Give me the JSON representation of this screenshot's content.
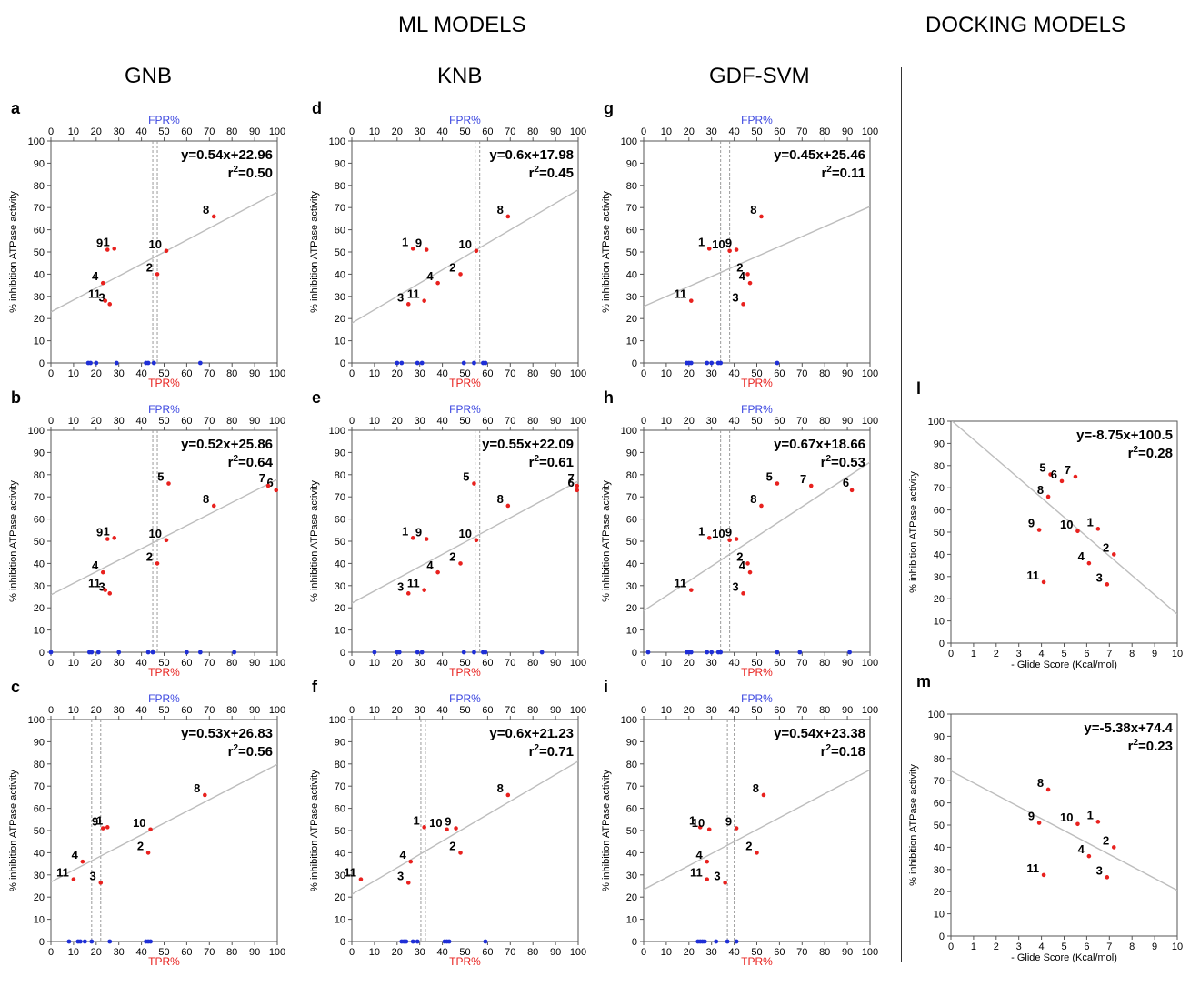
{
  "headers": {
    "ml": "ML MODELS",
    "docking": "DOCKING MODELS"
  },
  "columns": [
    "GNB",
    "KNB",
    "GDF-SVM"
  ],
  "axis_labels": {
    "fpr": "FPR%",
    "tpr": "TPR%",
    "activity": "% inhibition ATPase activity",
    "glide": "- Glide Score (Kcal/mol)"
  },
  "colors": {
    "compound": "#e8211e",
    "decoy": "#1f2fd6",
    "fit": "#bdbdbd",
    "fpr_text": "#3b46e0",
    "tpr_text": "#e8211e"
  },
  "chart_data": [
    {
      "id": "a",
      "type": "scatter",
      "model": "GNB",
      "xlim": [
        0,
        100
      ],
      "ylim": [
        0,
        100
      ],
      "equation": "y=0.54x+22.96",
      "r2": "0.50",
      "fit": {
        "slope": 0.54,
        "intercept": 22.96
      },
      "threshold": [
        45,
        47
      ],
      "points": [
        {
          "label": "1",
          "x": 28,
          "y": 51.5
        },
        {
          "label": "2",
          "x": 47,
          "y": 40
        },
        {
          "label": "3",
          "x": 26,
          "y": 26.5
        },
        {
          "label": "4",
          "x": 23,
          "y": 36
        },
        {
          "label": "8",
          "x": 72,
          "y": 66
        },
        {
          "label": "9",
          "x": 25,
          "y": 51
        },
        {
          "label": "10",
          "x": 51,
          "y": 50.5
        },
        {
          "label": "11",
          "x": 24,
          "y": 28
        }
      ],
      "decoys": [
        16.5,
        17.5,
        20,
        29,
        42,
        43,
        45.5,
        66
      ]
    },
    {
      "id": "d",
      "type": "scatter",
      "model": "KNB",
      "xlim": [
        0,
        100
      ],
      "ylim": [
        0,
        100
      ],
      "equation": "y=0.6x+17.98",
      "r2": "0.45",
      "fit": {
        "slope": 0.6,
        "intercept": 17.98
      },
      "threshold": [
        54.5,
        56.5
      ],
      "points": [
        {
          "label": "1",
          "x": 27,
          "y": 51.5
        },
        {
          "label": "2",
          "x": 48,
          "y": 40
        },
        {
          "label": "3",
          "x": 25,
          "y": 26.5
        },
        {
          "label": "4",
          "x": 38,
          "y": 36
        },
        {
          "label": "8",
          "x": 69,
          "y": 66
        },
        {
          "label": "9",
          "x": 33,
          "y": 51
        },
        {
          "label": "10",
          "x": 55,
          "y": 50.5
        },
        {
          "label": "11",
          "x": 32,
          "y": 28
        }
      ],
      "decoys": [
        20,
        22,
        29,
        31,
        49.5,
        54,
        58,
        59
      ]
    },
    {
      "id": "g",
      "type": "scatter",
      "model": "GDF-SVM",
      "xlim": [
        0,
        100
      ],
      "ylim": [
        0,
        100
      ],
      "equation": "y=0.45x+25.46",
      "r2": "0.11",
      "fit": {
        "slope": 0.45,
        "intercept": 25.46
      },
      "threshold": [
        34,
        38
      ],
      "points": [
        {
          "label": "1",
          "x": 29,
          "y": 51.5
        },
        {
          "label": "2",
          "x": 46,
          "y": 40
        },
        {
          "label": "3",
          "x": 44,
          "y": 26.5
        },
        {
          "label": "4",
          "x": 47,
          "y": 36
        },
        {
          "label": "8",
          "x": 52,
          "y": 66
        },
        {
          "label": "9",
          "x": 41,
          "y": 51
        },
        {
          "label": "10",
          "x": 38,
          "y": 50.5
        },
        {
          "label": "11",
          "x": 21,
          "y": 28
        }
      ],
      "decoys": [
        19,
        20,
        21,
        28,
        30,
        33,
        34,
        59
      ]
    },
    {
      "id": "b",
      "type": "scatter",
      "model": "GNB",
      "xlim": [
        0,
        100
      ],
      "ylim": [
        0,
        100
      ],
      "equation": "y=0.52x+25.86",
      "r2": "0.64",
      "fit": {
        "slope": 0.52,
        "intercept": 25.86
      },
      "threshold": [
        45,
        47
      ],
      "points": [
        {
          "label": "1",
          "x": 28,
          "y": 51.5
        },
        {
          "label": "2",
          "x": 47,
          "y": 40
        },
        {
          "label": "3",
          "x": 26,
          "y": 26.5
        },
        {
          "label": "4",
          "x": 23,
          "y": 36
        },
        {
          "label": "5",
          "x": 52,
          "y": 76
        },
        {
          "label": "6",
          "x": 99.5,
          "y": 73
        },
        {
          "label": "7",
          "x": 96,
          "y": 75
        },
        {
          "label": "8",
          "x": 72,
          "y": 66
        },
        {
          "label": "9",
          "x": 25,
          "y": 51
        },
        {
          "label": "10",
          "x": 51,
          "y": 50.5
        },
        {
          "label": "11",
          "x": 24,
          "y": 28
        }
      ],
      "decoys": [
        0,
        17,
        18,
        21,
        30,
        43,
        45,
        60,
        66,
        81
      ]
    },
    {
      "id": "e",
      "type": "scatter",
      "model": "KNB",
      "xlim": [
        0,
        100
      ],
      "ylim": [
        0,
        100
      ],
      "equation": "y=0.55x+22.09",
      "r2": "0.61",
      "fit": {
        "slope": 0.55,
        "intercept": 22.09
      },
      "threshold": [
        54.5,
        56.5
      ],
      "points": [
        {
          "label": "1",
          "x": 27,
          "y": 51.5
        },
        {
          "label": "2",
          "x": 48,
          "y": 40
        },
        {
          "label": "3",
          "x": 25,
          "y": 26.5
        },
        {
          "label": "4",
          "x": 38,
          "y": 36
        },
        {
          "label": "5",
          "x": 54,
          "y": 76
        },
        {
          "label": "6",
          "x": 99.5,
          "y": 73
        },
        {
          "label": "7",
          "x": 99.5,
          "y": 75
        },
        {
          "label": "8",
          "x": 69,
          "y": 66
        },
        {
          "label": "9",
          "x": 33,
          "y": 51
        },
        {
          "label": "10",
          "x": 55,
          "y": 50.5
        },
        {
          "label": "11",
          "x": 32,
          "y": 28
        }
      ],
      "decoys": [
        10,
        20,
        21,
        29,
        31,
        49.5,
        54,
        58,
        59,
        84
      ]
    },
    {
      "id": "h",
      "type": "scatter",
      "model": "GDF-SVM",
      "xlim": [
        0,
        100
      ],
      "ylim": [
        0,
        100
      ],
      "equation": "y=0.67x+18.66",
      "r2": "0.53",
      "fit": {
        "slope": 0.67,
        "intercept": 18.66
      },
      "threshold": [
        34,
        38
      ],
      "points": [
        {
          "label": "1",
          "x": 29,
          "y": 51.5
        },
        {
          "label": "2",
          "x": 46,
          "y": 40
        },
        {
          "label": "3",
          "x": 44,
          "y": 26.5
        },
        {
          "label": "4",
          "x": 47,
          "y": 36
        },
        {
          "label": "5",
          "x": 59,
          "y": 76
        },
        {
          "label": "6",
          "x": 92,
          "y": 73
        },
        {
          "label": "7",
          "x": 74,
          "y": 75
        },
        {
          "label": "8",
          "x": 52,
          "y": 66
        },
        {
          "label": "9",
          "x": 41,
          "y": 51
        },
        {
          "label": "10",
          "x": 38,
          "y": 50.5
        },
        {
          "label": "11",
          "x": 21,
          "y": 28
        }
      ],
      "decoys": [
        2,
        19,
        20,
        21,
        28,
        30,
        33,
        34,
        59,
        69,
        91
      ]
    },
    {
      "id": "c",
      "type": "scatter",
      "model": "GNB",
      "xlim": [
        0,
        100
      ],
      "ylim": [
        0,
        100
      ],
      "equation": "y=0.53x+26.83",
      "r2": "0.56",
      "fit": {
        "slope": 0.53,
        "intercept": 26.83
      },
      "threshold": [
        18,
        22
      ],
      "points": [
        {
          "label": "1",
          "x": 25,
          "y": 51.5
        },
        {
          "label": "2",
          "x": 43,
          "y": 40
        },
        {
          "label": "3",
          "x": 22,
          "y": 26.5
        },
        {
          "label": "4",
          "x": 14,
          "y": 36
        },
        {
          "label": "8",
          "x": 68,
          "y": 66
        },
        {
          "label": "9",
          "x": 23,
          "y": 51
        },
        {
          "label": "10",
          "x": 44,
          "y": 50.5
        },
        {
          "label": "11",
          "x": 10,
          "y": 28
        }
      ],
      "decoys": [
        8,
        12,
        13,
        15,
        18,
        26,
        42,
        43,
        44
      ]
    },
    {
      "id": "f",
      "type": "scatter",
      "model": "KNB",
      "xlim": [
        0,
        100
      ],
      "ylim": [
        0,
        100
      ],
      "equation": "y=0.6x+21.23",
      "r2": "0.71",
      "fit": {
        "slope": 0.6,
        "intercept": 21.23
      },
      "threshold": [
        30.5,
        32.5
      ],
      "points": [
        {
          "label": "1",
          "x": 32,
          "y": 51.5
        },
        {
          "label": "2",
          "x": 48,
          "y": 40
        },
        {
          "label": "3",
          "x": 25,
          "y": 26.5
        },
        {
          "label": "4",
          "x": 26,
          "y": 36
        },
        {
          "label": "8",
          "x": 69,
          "y": 66
        },
        {
          "label": "9",
          "x": 46,
          "y": 51
        },
        {
          "label": "10",
          "x": 42,
          "y": 50.5
        },
        {
          "label": "11",
          "x": 4,
          "y": 28
        }
      ],
      "decoys": [
        22,
        23,
        24,
        27,
        29,
        41,
        42,
        43,
        59
      ]
    },
    {
      "id": "i",
      "type": "scatter",
      "model": "GDF-SVM",
      "xlim": [
        0,
        100
      ],
      "ylim": [
        0,
        100
      ],
      "equation": "y=0.54x+23.38",
      "r2": "0.18",
      "fit": {
        "slope": 0.54,
        "intercept": 23.38
      },
      "threshold": [
        37,
        40
      ],
      "points": [
        {
          "label": "1",
          "x": 25,
          "y": 51.5
        },
        {
          "label": "2",
          "x": 50,
          "y": 40
        },
        {
          "label": "3",
          "x": 36,
          "y": 26.5
        },
        {
          "label": "4",
          "x": 28,
          "y": 36
        },
        {
          "label": "8",
          "x": 53,
          "y": 66
        },
        {
          "label": "9",
          "x": 41,
          "y": 51
        },
        {
          "label": "10",
          "x": 29,
          "y": 50.5
        },
        {
          "label": "11",
          "x": 28,
          "y": 28
        }
      ],
      "decoys": [
        24,
        25,
        26,
        27,
        32,
        37,
        41
      ]
    },
    {
      "id": "l",
      "type": "scatter",
      "model": "Docking",
      "xlim": [
        0,
        10
      ],
      "ylim": [
        0,
        100
      ],
      "equation": "y=-8.75x+100.5",
      "r2": "0.28",
      "fit": {
        "slope": -8.75,
        "intercept": 100.5
      },
      "points": [
        {
          "label": "1",
          "x": 6.5,
          "y": 51.5
        },
        {
          "label": "2",
          "x": 7.2,
          "y": 40
        },
        {
          "label": "3",
          "x": 6.9,
          "y": 26.5
        },
        {
          "label": "4",
          "x": 6.1,
          "y": 36
        },
        {
          "label": "5",
          "x": 4.4,
          "y": 76
        },
        {
          "label": "6",
          "x": 4.9,
          "y": 73
        },
        {
          "label": "7",
          "x": 5.5,
          "y": 75
        },
        {
          "label": "8",
          "x": 4.3,
          "y": 66
        },
        {
          "label": "9",
          "x": 3.9,
          "y": 51
        },
        {
          "label": "10",
          "x": 5.6,
          "y": 50.5
        },
        {
          "label": "11",
          "x": 4.1,
          "y": 27.5
        }
      ]
    },
    {
      "id": "m",
      "type": "scatter",
      "model": "Docking",
      "xlim": [
        0,
        10
      ],
      "ylim": [
        0,
        100
      ],
      "equation": "y=-5.38x+74.4",
      "r2": "0.23",
      "fit": {
        "slope": -5.38,
        "intercept": 74.4
      },
      "points": [
        {
          "label": "1",
          "x": 6.5,
          "y": 51.5
        },
        {
          "label": "2",
          "x": 7.2,
          "y": 40
        },
        {
          "label": "3",
          "x": 6.9,
          "y": 26.5
        },
        {
          "label": "4",
          "x": 6.1,
          "y": 36
        },
        {
          "label": "8",
          "x": 4.3,
          "y": 66
        },
        {
          "label": "9",
          "x": 3.9,
          "y": 51
        },
        {
          "label": "10",
          "x": 5.6,
          "y": 50.5
        },
        {
          "label": "11",
          "x": 4.1,
          "y": 27.5
        }
      ]
    }
  ]
}
